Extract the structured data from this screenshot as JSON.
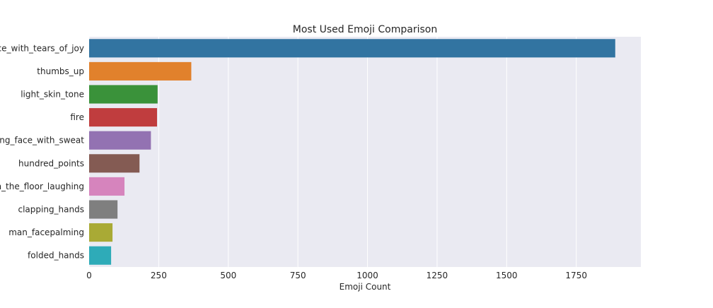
{
  "chart_data": {
    "type": "bar",
    "orientation": "horizontal",
    "title": "Most Used Emoji Comparison",
    "xlabel": "Emoji Count",
    "ylabel": "",
    "categories": [
      "face_with_tears_of_joy",
      "thumbs_up",
      "light_skin_tone",
      "fire",
      "grinning_face_with_sweat",
      "hundred_points",
      "rolling_on_the_floor_laughing",
      "clapping_hands",
      "man_facepalming",
      "folded_hands"
    ],
    "values": [
      1890,
      367,
      246,
      244,
      222,
      181,
      127,
      102,
      84,
      79
    ],
    "xlim": [
      0,
      1982
    ],
    "xticks": [
      0,
      250,
      500,
      750,
      1000,
      1250,
      1500,
      1750
    ],
    "grid": true,
    "legend": "none",
    "colors": [
      "#3274a1",
      "#e1812c",
      "#3a923a",
      "#c03d3e",
      "#9372b2",
      "#845b53",
      "#d684bd",
      "#7f7f7f",
      "#a9aa35",
      "#2eabb8"
    ],
    "background": "#eaeaf2"
  }
}
